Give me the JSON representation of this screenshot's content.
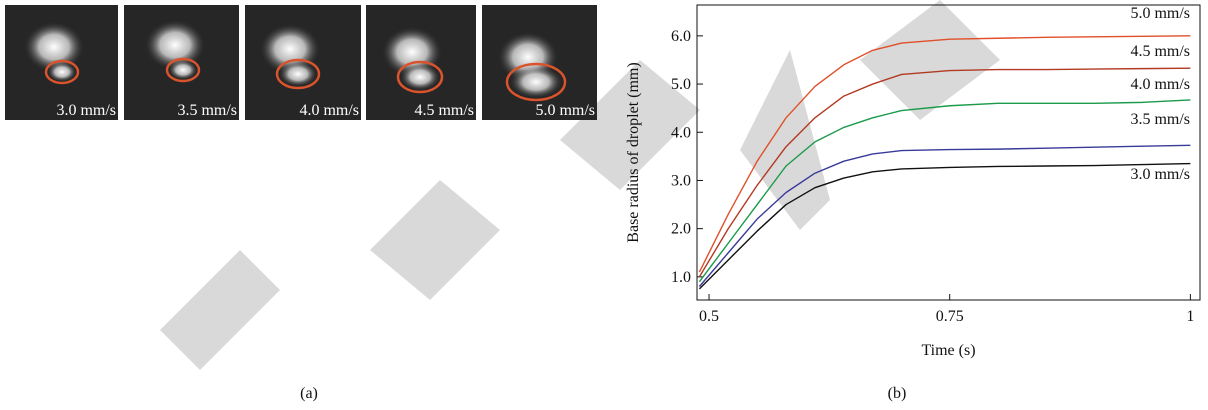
{
  "panel_a": {
    "labels": [
      "3.0 mm/s",
      "3.5 mm/s",
      "4.0 mm/s",
      "4.5 mm/s",
      "5.0 mm/s"
    ],
    "caption": "(a)"
  },
  "panel_b": {
    "caption": "(b)"
  },
  "chart_data": {
    "type": "line",
    "x_label": "Time (s)",
    "y_label": "Base radius of droplet (mm)",
    "x": [
      0.49,
      0.52,
      0.55,
      0.58,
      0.61,
      0.64,
      0.67,
      0.7,
      0.75,
      0.8,
      0.85,
      0.9,
      0.95,
      1.0
    ],
    "xlim": [
      0.4875,
      1.01
    ],
    "ylim": [
      0.52,
      6.64
    ],
    "xticks": [
      0.5,
      0.75,
      1
    ],
    "yticks": [
      {
        "value": 1,
        "label": "1.0"
      },
      {
        "value": 2,
        "label": "2.0"
      },
      {
        "value": 3,
        "label": "3.0"
      },
      {
        "value": 4,
        "label": "4.0"
      },
      {
        "value": 5,
        "label": "5.0"
      },
      {
        "value": 6,
        "label": "6.0"
      }
    ],
    "series": [
      {
        "name": "5.0 mm/s",
        "color": "#e0502a",
        "values": [
          1.1,
          2.3,
          3.4,
          4.3,
          4.95,
          5.4,
          5.7,
          5.85,
          5.93,
          5.95,
          5.97,
          5.98,
          5.99,
          6.0
        ]
      },
      {
        "name": "4.5 mm/s",
        "color": "#b23a22",
        "values": [
          1.0,
          2.0,
          2.9,
          3.7,
          4.3,
          4.75,
          5.0,
          5.2,
          5.28,
          5.3,
          5.3,
          5.31,
          5.32,
          5.33
        ]
      },
      {
        "name": "4.0 mm/s",
        "color": "#1a9a4a",
        "values": [
          0.9,
          1.7,
          2.5,
          3.3,
          3.8,
          4.1,
          4.3,
          4.45,
          4.55,
          4.6,
          4.6,
          4.6,
          4.62,
          4.67
        ]
      },
      {
        "name": "3.5 mm/s",
        "color": "#3a3a9a",
        "values": [
          0.8,
          1.5,
          2.2,
          2.75,
          3.15,
          3.4,
          3.55,
          3.62,
          3.64,
          3.65,
          3.67,
          3.69,
          3.71,
          3.73
        ]
      },
      {
        "name": "3.0 mm/s",
        "color": "#111111",
        "values": [
          0.75,
          1.35,
          1.95,
          2.5,
          2.85,
          3.05,
          3.18,
          3.24,
          3.27,
          3.29,
          3.3,
          3.31,
          3.33,
          3.35
        ]
      }
    ]
  }
}
